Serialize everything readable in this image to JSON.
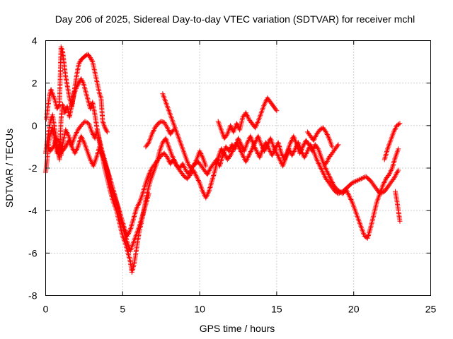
{
  "chart_data": {
    "type": "scatter",
    "title": "Day 206 of 2025, Sidereal Day-to-day VTEC variation (SDTVAR) for receiver mchl",
    "xlabel": "GPS time / hours",
    "ylabel": "SDTVAR / TECUs",
    "xlim": [
      0,
      25
    ],
    "ylim": [
      -8,
      4
    ],
    "xticks": [
      0,
      5,
      10,
      15,
      20,
      25
    ],
    "yticks": [
      -8,
      -6,
      -4,
      -2,
      0,
      2,
      4
    ],
    "grid": true,
    "marker": "plus",
    "color": "#ff0000",
    "traces": [
      [
        [
          0.0,
          -2.2
        ],
        [
          0.1,
          -1.6
        ],
        [
          0.2,
          -0.8
        ],
        [
          0.3,
          -0.4
        ],
        [
          0.45,
          -0.1
        ],
        [
          0.6,
          -0.7
        ],
        [
          0.75,
          -1.3
        ],
        [
          0.9,
          -0.9
        ],
        [
          1.0,
          -1.4
        ],
        [
          1.15,
          -0.7
        ],
        [
          1.3,
          -0.2
        ],
        [
          1.5,
          -0.5
        ],
        [
          1.7,
          -0.9
        ],
        [
          1.9,
          -0.5
        ],
        [
          2.1,
          -0.2
        ],
        [
          2.3,
          0.0
        ],
        [
          2.55,
          0.2
        ],
        [
          2.8,
          0.1
        ],
        [
          3.0,
          -0.3
        ],
        [
          3.2,
          -0.6
        ],
        [
          3.35,
          -0.2
        ],
        [
          3.5,
          -0.7
        ],
        [
          3.7,
          -1.3
        ],
        [
          3.9,
          -1.8
        ],
        [
          4.1,
          -2.4
        ],
        [
          4.3,
          -3.0
        ],
        [
          4.5,
          -3.4
        ],
        [
          4.7,
          -3.8
        ],
        [
          4.9,
          -4.3
        ],
        [
          5.1,
          -4.8
        ],
        [
          5.3,
          -5.2
        ],
        [
          5.5,
          -4.9
        ],
        [
          5.7,
          -4.4
        ],
        [
          5.9,
          -3.9
        ],
        [
          6.1,
          -3.6
        ],
        [
          6.3,
          -3.2
        ],
        [
          6.5,
          -2.7
        ],
        [
          6.7,
          -2.3
        ],
        [
          6.9,
          -2.0
        ],
        [
          7.1,
          -1.8
        ],
        [
          7.3,
          -1.6
        ],
        [
          7.5,
          -1.4
        ],
        [
          7.7,
          -1.3
        ],
        [
          7.9,
          -1.5
        ],
        [
          8.1,
          -1.8
        ],
        [
          8.3,
          -1.6
        ],
        [
          8.5,
          -1.9
        ],
        [
          8.7,
          -2.0
        ],
        [
          8.9,
          -1.8
        ],
        [
          9.1,
          -2.1
        ],
        [
          9.3,
          -2.3
        ],
        [
          9.5,
          -2.0
        ],
        [
          9.7,
          -1.8
        ],
        [
          9.9,
          -1.7
        ],
        [
          10.1,
          -1.9
        ],
        [
          10.3,
          -2.1
        ],
        [
          10.5,
          -2.3
        ],
        [
          10.7,
          -2.0
        ],
        [
          10.9,
          -1.8
        ],
        [
          11.1,
          -1.6
        ],
        [
          11.3,
          -1.9
        ],
        [
          11.5,
          -1.4
        ],
        [
          11.7,
          -1.0
        ],
        [
          11.9,
          -1.2
        ],
        [
          12.1,
          -0.9
        ],
        [
          12.3,
          -1.1
        ],
        [
          12.5,
          -0.6
        ],
        [
          12.7,
          -0.9
        ],
        [
          12.9,
          -1.2
        ],
        [
          13.1,
          -0.8
        ],
        [
          13.3,
          -0.5
        ],
        [
          13.5,
          -0.9
        ],
        [
          13.7,
          -1.2
        ],
        [
          13.9,
          -1.5
        ],
        [
          14.1,
          -1.1
        ],
        [
          14.3,
          -0.8
        ],
        [
          14.5,
          -1.1
        ],
        [
          14.7,
          -1.4
        ],
        [
          14.9,
          -1.1
        ],
        [
          15.1,
          -0.8
        ],
        [
          15.3,
          -1.3
        ],
        [
          15.5,
          -1.6
        ],
        [
          15.7,
          -1.2
        ],
        [
          15.9,
          -0.8
        ],
        [
          16.1,
          -0.5
        ],
        [
          16.3,
          -0.9
        ],
        [
          16.5,
          -1.3
        ],
        [
          16.7,
          -1.0
        ],
        [
          16.9,
          -0.7
        ],
        [
          17.1,
          -0.9
        ],
        [
          17.3,
          -1.2
        ],
        [
          17.5,
          -0.9
        ],
        [
          17.7,
          -1.1
        ],
        [
          17.9,
          -1.5
        ],
        [
          18.1,
          -1.9
        ],
        [
          18.3,
          -2.2
        ],
        [
          18.5,
          -2.5
        ],
        [
          18.7,
          -2.8
        ],
        [
          18.9,
          -3.0
        ],
        [
          19.1,
          -3.1
        ],
        [
          19.3,
          -3.2
        ],
        [
          19.5,
          -3.0
        ],
        [
          19.7,
          -3.3
        ],
        [
          19.9,
          -3.6
        ],
        [
          20.1,
          -4.0
        ],
        [
          20.3,
          -4.4
        ],
        [
          20.5,
          -4.8
        ],
        [
          20.7,
          -5.2
        ],
        [
          20.9,
          -5.3
        ],
        [
          21.1,
          -4.8
        ],
        [
          21.3,
          -4.2
        ],
        [
          21.5,
          -3.6
        ],
        [
          21.7,
          -3.2
        ],
        [
          21.9,
          -2.8
        ],
        [
          22.1,
          -2.5
        ],
        [
          22.3,
          -2.3
        ],
        [
          22.5,
          -2.0
        ],
        [
          22.7,
          -1.5
        ],
        [
          22.9,
          -1.1
        ]
      ],
      [
        [
          0.0,
          -1.3
        ],
        [
          0.15,
          -0.5
        ],
        [
          0.3,
          0.2
        ],
        [
          0.45,
          0.5
        ],
        [
          0.6,
          -0.2
        ],
        [
          0.75,
          -1.0
        ],
        [
          0.9,
          -1.6
        ],
        [
          1.0,
          0.3
        ],
        [
          1.1,
          1.0
        ],
        [
          1.25,
          0.6
        ],
        [
          1.4,
          0.9
        ],
        [
          1.55,
          0.4
        ],
        [
          1.7,
          1.0
        ],
        [
          1.85,
          1.5
        ],
        [
          2.0,
          1.8
        ],
        [
          2.15,
          2.0
        ],
        [
          2.3,
          2.2
        ],
        [
          2.45,
          2.0
        ],
        [
          2.6,
          1.6
        ],
        [
          2.75,
          1.2
        ],
        [
          2.9,
          0.8
        ],
        [
          3.05,
          1.1
        ],
        [
          3.2,
          0.5
        ],
        [
          3.35,
          -0.2
        ],
        [
          3.5,
          -0.8
        ],
        [
          3.65,
          -1.3
        ],
        [
          3.8,
          -1.9
        ],
        [
          4.0,
          -2.5
        ],
        [
          4.2,
          -3.1
        ],
        [
          4.4,
          -3.6
        ],
        [
          4.6,
          -4.0
        ],
        [
          4.8,
          -4.6
        ],
        [
          5.0,
          -5.2
        ],
        [
          5.2,
          -5.6
        ],
        [
          5.35,
          -6.0
        ],
        [
          5.5,
          -6.4
        ],
        [
          5.6,
          -6.9
        ],
        [
          5.75,
          -6.5
        ],
        [
          5.9,
          -5.8
        ],
        [
          6.05,
          -5.1
        ],
        [
          6.2,
          -4.6
        ],
        [
          6.35,
          -4.1
        ],
        [
          6.5,
          -3.5
        ],
        [
          6.65,
          -3.0
        ],
        [
          6.8,
          -2.6
        ],
        [
          7.0,
          -2.2
        ],
        [
          7.2,
          -1.8
        ],
        [
          7.4,
          -1.2
        ],
        [
          7.6,
          -0.8
        ],
        [
          7.8,
          -0.6
        ],
        [
          8.0,
          -1.0
        ],
        [
          8.2,
          -1.4
        ],
        [
          8.4,
          -1.7
        ],
        [
          8.6,
          -2.0
        ],
        [
          8.8,
          -2.2
        ],
        [
          9.0,
          -2.4
        ],
        [
          9.2,
          -2.5
        ],
        [
          9.4,
          -2.3
        ],
        [
          9.6,
          -2.1
        ],
        [
          9.8,
          -2.4
        ],
        [
          10.0,
          -2.7
        ],
        [
          10.2,
          -3.1
        ],
        [
          10.4,
          -3.4
        ],
        [
          10.6,
          -3.1
        ],
        [
          10.8,
          -2.6
        ],
        [
          11.0,
          -2.1
        ],
        [
          11.2,
          -1.5
        ],
        [
          11.4,
          -1.1
        ],
        [
          11.6,
          -1.3
        ],
        [
          11.8,
          -1.6
        ],
        [
          12.0,
          -1.4
        ],
        [
          12.2,
          -1.1
        ],
        [
          12.4,
          -0.8
        ],
        [
          12.6,
          -1.1
        ],
        [
          12.8,
          -1.4
        ],
        [
          13.0,
          -1.7
        ],
        [
          13.2,
          -1.4
        ],
        [
          13.4,
          -1.1
        ],
        [
          13.6,
          -0.8
        ],
        [
          13.8,
          -0.5
        ],
        [
          14.0,
          -0.9
        ],
        [
          14.2,
          -1.2
        ],
        [
          14.4,
          -0.9
        ],
        [
          14.6,
          -0.6
        ],
        [
          14.8,
          -1.0
        ],
        [
          15.0,
          -1.3
        ],
        [
          15.2,
          -1.6
        ],
        [
          15.4,
          -1.9
        ],
        [
          15.6,
          -1.5
        ],
        [
          15.8,
          -1.1
        ],
        [
          16.0,
          -1.4
        ],
        [
          16.2,
          -1.1
        ],
        [
          16.4,
          -0.8
        ],
        [
          16.6,
          -1.2
        ],
        [
          16.8,
          -1.5
        ],
        [
          17.0,
          -1.2
        ],
        [
          17.2,
          -0.9
        ],
        [
          17.4,
          -1.2
        ],
        [
          17.6,
          -1.6
        ],
        [
          17.8,
          -1.9
        ],
        [
          18.0,
          -2.2
        ],
        [
          18.2,
          -2.5
        ],
        [
          18.4,
          -2.7
        ],
        [
          18.6,
          -2.9
        ],
        [
          18.8,
          -3.1
        ],
        [
          19.0,
          -3.2
        ],
        [
          19.3,
          -3.1
        ],
        [
          19.6,
          -2.9
        ],
        [
          19.9,
          -2.7
        ],
        [
          20.2,
          -2.6
        ],
        [
          20.5,
          -2.5
        ],
        [
          20.8,
          -2.4
        ],
        [
          21.1,
          -2.6
        ],
        [
          21.4,
          -2.9
        ],
        [
          21.7,
          -3.2
        ],
        [
          22.0,
          -3.1
        ],
        [
          22.3,
          -2.8
        ],
        [
          22.6,
          -2.5
        ],
        [
          22.9,
          -2.1
        ]
      ],
      [
        [
          0.05,
          0.3
        ],
        [
          0.15,
          0.9
        ],
        [
          0.25,
          1.4
        ],
        [
          0.35,
          1.7
        ],
        [
          0.45,
          1.5
        ],
        [
          0.6,
          1.2
        ],
        [
          0.75,
          0.8
        ],
        [
          0.9,
          1.0
        ],
        [
          1.0,
          3.7
        ],
        [
          1.1,
          3.5
        ],
        [
          1.2,
          2.9
        ],
        [
          1.3,
          2.3
        ],
        [
          1.4,
          1.9
        ],
        [
          1.55,
          1.3
        ],
        [
          1.7,
          0.9
        ],
        [
          1.85,
          1.6
        ],
        [
          2.0,
          2.3
        ],
        [
          2.15,
          2.9
        ],
        [
          2.3,
          3.1
        ],
        [
          2.45,
          3.2
        ],
        [
          2.6,
          3.3
        ],
        [
          2.75,
          3.35
        ],
        [
          2.9,
          3.2
        ],
        [
          3.05,
          3.0
        ],
        [
          3.2,
          2.5
        ],
        [
          3.35,
          2.0
        ],
        [
          3.5,
          1.5
        ],
        [
          3.6,
          1.3
        ],
        [
          3.7,
          0.2
        ],
        [
          3.85,
          -0.1
        ],
        [
          4.0,
          -0.3
        ]
      ],
      [
        [
          0.1,
          -0.9
        ],
        [
          0.3,
          -1.2
        ],
        [
          0.5,
          -1.0
        ],
        [
          0.7,
          -0.6
        ],
        [
          0.9,
          -0.8
        ],
        [
          1.1,
          -1.2
        ],
        [
          1.3,
          -1.0
        ],
        [
          1.5,
          -0.7
        ],
        [
          1.7,
          -1.0
        ],
        [
          1.9,
          -1.3
        ],
        [
          2.1,
          -1.0
        ],
        [
          2.3,
          -0.5
        ],
        [
          2.5,
          -0.8
        ],
        [
          2.7,
          -1.2
        ],
        [
          2.9,
          -1.6
        ],
        [
          3.1,
          -1.9
        ],
        [
          3.3,
          -1.5
        ],
        [
          3.5,
          -1.0
        ],
        [
          3.7,
          -1.4
        ],
        [
          3.9,
          -1.9
        ],
        [
          4.1,
          -2.3
        ],
        [
          4.3,
          -2.8
        ],
        [
          4.5,
          -3.3
        ],
        [
          4.7,
          -3.9
        ],
        [
          4.9,
          -4.5
        ],
        [
          5.1,
          -5.0
        ],
        [
          5.3,
          -5.5
        ],
        [
          5.5,
          -5.9
        ],
        [
          5.7,
          -5.5
        ],
        [
          5.9,
          -5.1
        ],
        [
          6.1,
          -4.7
        ],
        [
          6.3,
          -4.2
        ],
        [
          6.5,
          -3.7
        ],
        [
          6.7,
          -3.2
        ]
      ],
      [
        [
          6.5,
          -1.0
        ],
        [
          6.7,
          -0.8
        ],
        [
          6.9,
          -0.4
        ],
        [
          7.1,
          -0.1
        ],
        [
          7.3,
          0.1
        ],
        [
          7.5,
          0.2
        ],
        [
          7.7,
          0.15
        ],
        [
          7.9,
          -0.1
        ],
        [
          8.1,
          -0.4
        ],
        [
          8.3,
          -0.2
        ]
      ],
      [
        [
          7.6,
          1.5
        ],
        [
          7.8,
          1.1
        ],
        [
          8.0,
          0.7
        ],
        [
          8.2,
          0.3
        ],
        [
          8.4,
          -0.1
        ],
        [
          8.6,
          -0.5
        ],
        [
          8.8,
          -0.9
        ],
        [
          9.0,
          -1.3
        ],
        [
          9.2,
          -1.7
        ],
        [
          9.4,
          -2.0
        ],
        [
          9.6,
          -1.9
        ],
        [
          9.8,
          -1.6
        ],
        [
          10.0,
          -1.2
        ],
        [
          10.2,
          -1.5
        ],
        [
          10.4,
          -1.9
        ]
      ],
      [
        [
          11.2,
          0.2
        ],
        [
          11.4,
          -0.2
        ],
        [
          11.6,
          -0.6
        ],
        [
          11.8,
          -0.4
        ],
        [
          12.0,
          0.0
        ],
        [
          12.2,
          -0.3
        ],
        [
          12.4,
          0.1
        ],
        [
          12.6,
          -0.2
        ],
        [
          12.8,
          0.4
        ],
        [
          13.0,
          0.6
        ],
        [
          13.2,
          0.3
        ],
        [
          13.4,
          0.1
        ],
        [
          13.6,
          -0.1
        ],
        [
          13.8,
          0.2
        ],
        [
          14.0,
          0.6
        ],
        [
          14.2,
          1.0
        ],
        [
          14.4,
          1.3
        ],
        [
          14.6,
          1.1
        ],
        [
          14.8,
          0.9
        ],
        [
          15.0,
          0.7
        ]
      ],
      [
        [
          18.2,
          -1.8
        ],
        [
          18.4,
          -1.5
        ],
        [
          18.6,
          -1.3
        ],
        [
          18.8,
          -1.1
        ],
        [
          19.0,
          -0.9
        ]
      ],
      [
        [
          17.0,
          -0.3
        ],
        [
          17.2,
          -0.5
        ],
        [
          17.4,
          -0.7
        ],
        [
          17.6,
          -0.4
        ],
        [
          17.8,
          -0.2
        ],
        [
          18.0,
          -0.1
        ],
        [
          18.2,
          -0.3
        ],
        [
          18.4,
          -0.6
        ],
        [
          18.6,
          -1.0
        ]
      ],
      [
        [
          22.0,
          -1.6
        ],
        [
          22.2,
          -1.1
        ],
        [
          22.4,
          -0.7
        ],
        [
          22.6,
          -0.3
        ],
        [
          22.8,
          0.0
        ],
        [
          23.0,
          0.1
        ]
      ],
      [
        [
          22.7,
          -3.1
        ],
        [
          22.8,
          -3.5
        ],
        [
          22.9,
          -4.0
        ],
        [
          23.0,
          -4.5
        ]
      ]
    ]
  }
}
